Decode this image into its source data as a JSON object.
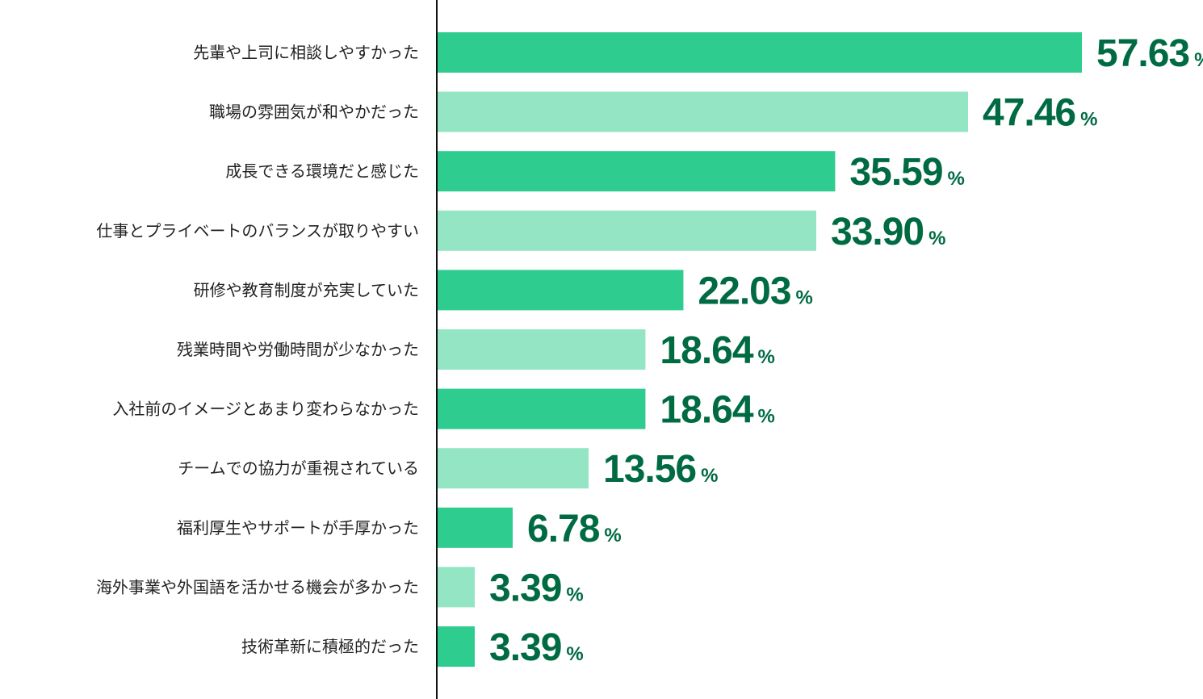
{
  "chart_data": {
    "type": "bar",
    "orientation": "horizontal",
    "categories": [
      "先輩や上司に相談しやすかった",
      "職場の雰囲気が和やかだった",
      "成長できる環境だと感じた",
      "仕事とプライベートのバランスが取りやすい",
      "研修や教育制度が充実していた",
      "残業時間や労働時間が少なかった",
      "入社前のイメージとあまり変わらなかった",
      "チームでの協力が重視されている",
      "福利厚生やサポートが手厚かった",
      "海外事業や外国語を活かせる機会が多かった",
      "技術革新に積極的だった"
    ],
    "values": [
      57.63,
      47.46,
      35.59,
      33.9,
      22.03,
      18.64,
      18.64,
      13.56,
      6.78,
      3.39,
      3.39
    ],
    "value_labels": [
      "57.63",
      "47.46",
      "35.59",
      "33.90",
      "22.03",
      "18.64",
      "18.64",
      "13.56",
      "6.78",
      "3.39",
      "3.39"
    ],
    "unit": "%",
    "xlim": [
      0,
      57.63
    ],
    "grid": false,
    "legend": "none",
    "colors": {
      "bar_dark": "#2ecc8f",
      "bar_light": "#93e5c4",
      "value_text": "#006b43",
      "label_text": "#222222",
      "axis_line": "#111111"
    }
  }
}
